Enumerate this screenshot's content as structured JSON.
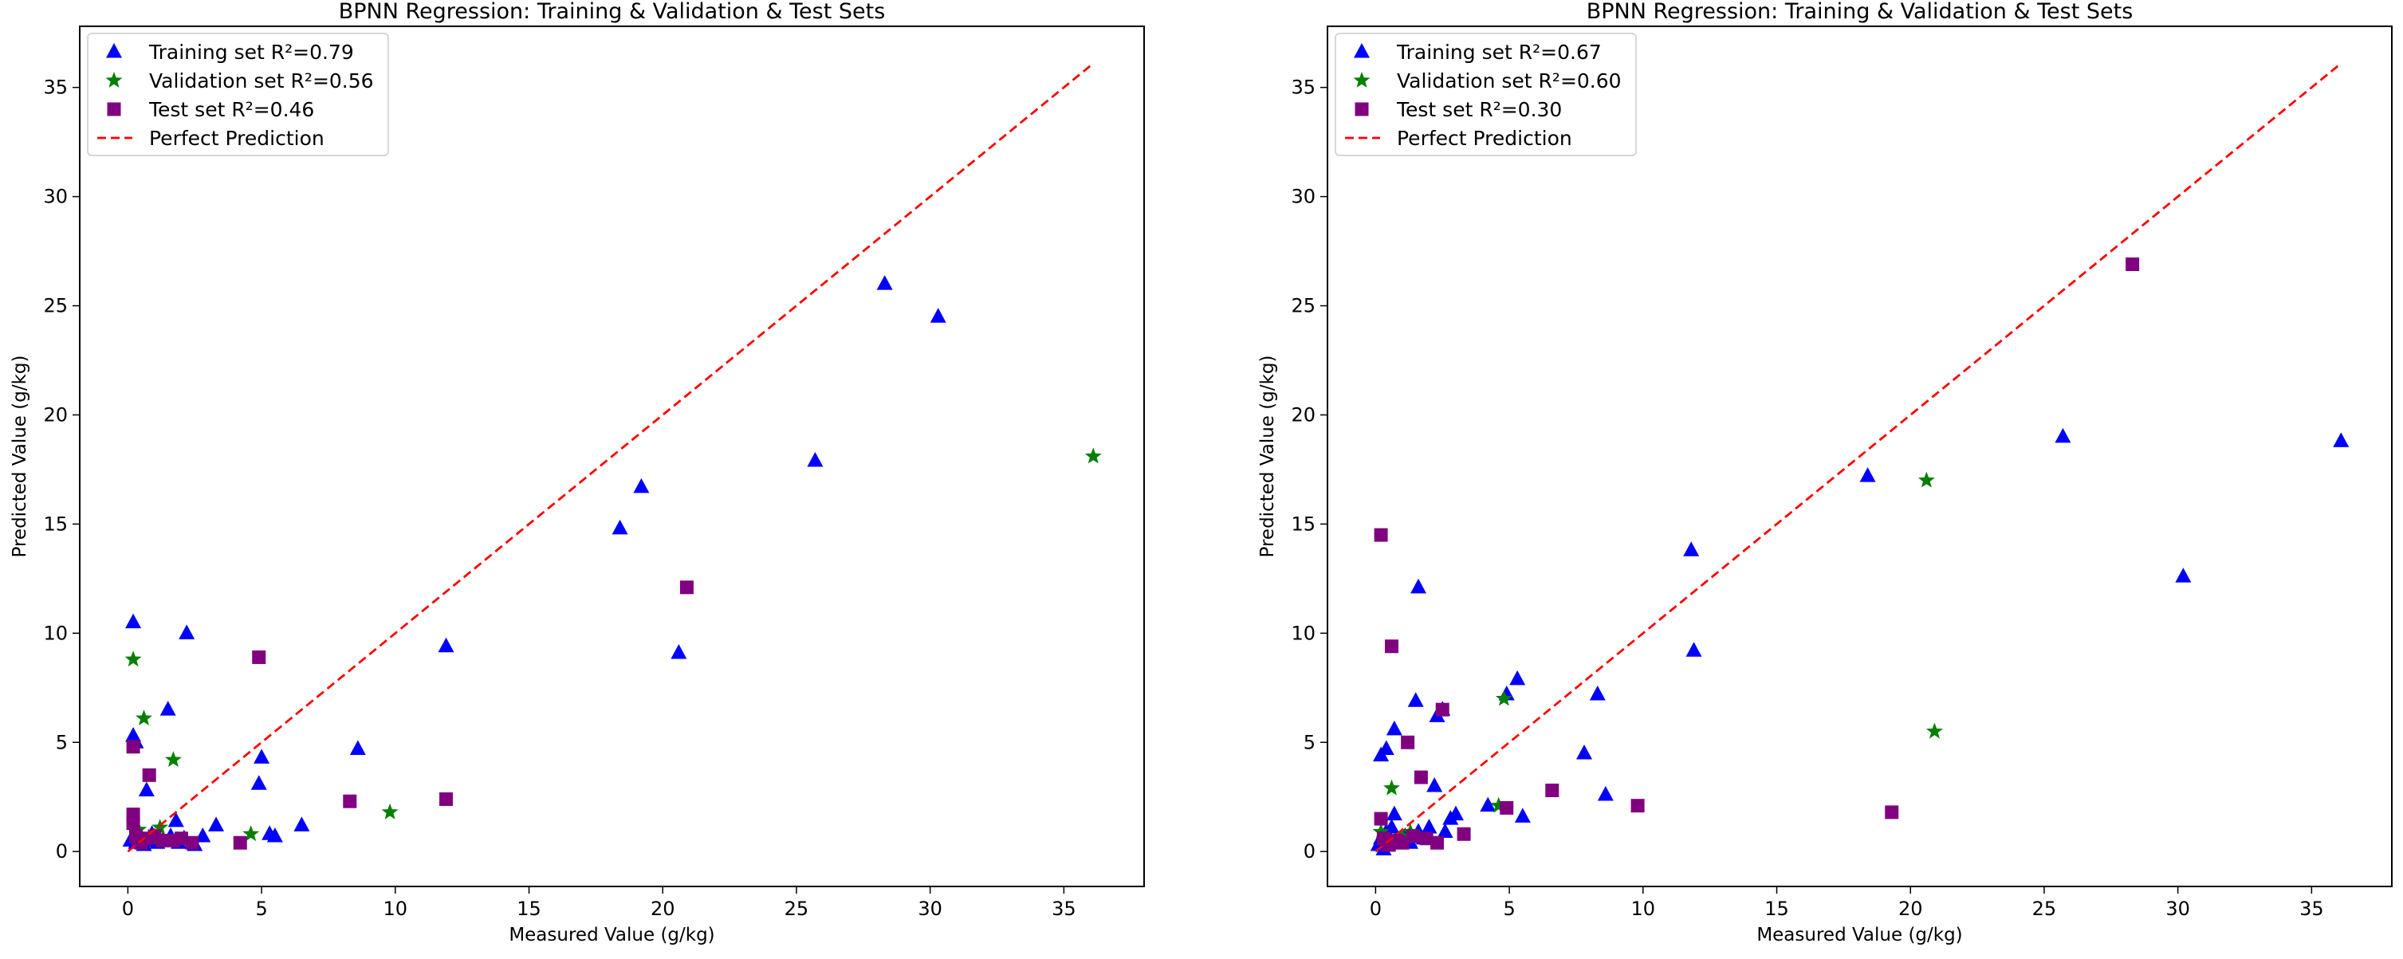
{
  "chart_data": [
    {
      "type": "scatter",
      "title": "BPNN Regression: Training & Validation & Test Sets",
      "xlabel": "Measured Value (g/kg)",
      "ylabel": "Predicted Value (g/kg)",
      "xlim": [
        -1.8,
        38.0
      ],
      "ylim": [
        -1.6,
        37.8
      ],
      "xticks": [
        0,
        5,
        10,
        15,
        20,
        25,
        30,
        35
      ],
      "yticks": [
        0,
        5,
        10,
        15,
        20,
        25,
        30,
        35
      ],
      "legend_position": "top-left",
      "perfect_prediction": {
        "label": "Perfect Prediction",
        "color": "#ff0000",
        "from": [
          0,
          0
        ],
        "to": [
          36.1,
          36.1
        ]
      },
      "series": [
        {
          "name": "Training set R²=0.79",
          "marker": "triangle",
          "color": "#0000ff",
          "points": [
            [
              0.2,
              10.5
            ],
            [
              0.2,
              5.3
            ],
            [
              0.3,
              5.0
            ],
            [
              2.2,
              10.0
            ],
            [
              1.5,
              6.5
            ],
            [
              0.7,
              2.8
            ],
            [
              1.8,
              1.4
            ],
            [
              0.1,
              0.5
            ],
            [
              0.2,
              0.7
            ],
            [
              0.3,
              0.4
            ],
            [
              0.4,
              0.9
            ],
            [
              0.5,
              0.6
            ],
            [
              0.6,
              0.3
            ],
            [
              0.8,
              0.5
            ],
            [
              0.9,
              0.8
            ],
            [
              1.0,
              0.6
            ],
            [
              1.1,
              0.4
            ],
            [
              1.3,
              0.5
            ],
            [
              1.6,
              0.7
            ],
            [
              1.9,
              0.4
            ],
            [
              2.1,
              0.6
            ],
            [
              2.5,
              0.3
            ],
            [
              2.8,
              0.7
            ],
            [
              3.3,
              1.2
            ],
            [
              5.0,
              4.3
            ],
            [
              4.9,
              3.1
            ],
            [
              5.3,
              0.8
            ],
            [
              5.5,
              0.7
            ],
            [
              6.5,
              1.2
            ],
            [
              8.6,
              4.7
            ],
            [
              11.9,
              9.4
            ],
            [
              18.4,
              14.8
            ],
            [
              19.2,
              16.7
            ],
            [
              20.6,
              9.1
            ],
            [
              25.7,
              17.9
            ],
            [
              28.3,
              26.0
            ],
            [
              30.3,
              24.5
            ]
          ]
        },
        {
          "name": "Validation set R²=0.56",
          "marker": "star",
          "color": "#008000",
          "points": [
            [
              0.2,
              8.8
            ],
            [
              0.6,
              6.1
            ],
            [
              1.7,
              4.2
            ],
            [
              0.4,
              1.0
            ],
            [
              0.9,
              0.6
            ],
            [
              1.2,
              1.1
            ],
            [
              4.6,
              0.8
            ],
            [
              9.8,
              1.8
            ],
            [
              36.1,
              18.1
            ]
          ]
        },
        {
          "name": "Test set R²=0.46",
          "marker": "square",
          "color": "#800080",
          "points": [
            [
              0.2,
              4.8
            ],
            [
              0.8,
              3.5
            ],
            [
              0.2,
              1.7
            ],
            [
              0.2,
              1.3
            ],
            [
              0.3,
              0.7
            ],
            [
              0.4,
              0.5
            ],
            [
              0.5,
              0.4
            ],
            [
              0.7,
              0.6
            ],
            [
              1.0,
              0.7
            ],
            [
              1.3,
              0.5
            ],
            [
              1.7,
              0.5
            ],
            [
              2.0,
              0.6
            ],
            [
              2.4,
              0.4
            ],
            [
              4.2,
              0.4
            ],
            [
              4.9,
              8.9
            ],
            [
              8.3,
              2.3
            ],
            [
              11.9,
              2.4
            ],
            [
              20.9,
              12.1
            ]
          ]
        }
      ]
    },
    {
      "type": "scatter",
      "title": "BPNN Regression: Training & Validation & Test Sets",
      "xlabel": "Measured Value (g/kg)",
      "ylabel": "Predicted Value (g/kg)",
      "xlim": [
        -1.8,
        38.0
      ],
      "ylim": [
        -1.6,
        37.8
      ],
      "xticks": [
        0,
        5,
        10,
        15,
        20,
        25,
        30,
        35
      ],
      "yticks": [
        0,
        5,
        10,
        15,
        20,
        25,
        30,
        35
      ],
      "legend_position": "top-left",
      "perfect_prediction": {
        "label": "Perfect Prediction",
        "color": "#ff0000",
        "from": [
          0,
          0
        ],
        "to": [
          36.1,
          36.1
        ]
      },
      "series": [
        {
          "name": "Training set R²=0.67",
          "marker": "triangle",
          "color": "#0000ff",
          "points": [
            [
              0.2,
              4.4
            ],
            [
              0.4,
              4.7
            ],
            [
              0.7,
              5.6
            ],
            [
              1.5,
              6.9
            ],
            [
              1.6,
              12.1
            ],
            [
              2.3,
              6.2
            ],
            [
              2.5,
              6.5
            ],
            [
              2.2,
              3.0
            ],
            [
              0.1,
              0.3
            ],
            [
              0.2,
              0.6
            ],
            [
              0.3,
              0.1
            ],
            [
              0.4,
              0.9
            ],
            [
              0.5,
              0.4
            ],
            [
              0.6,
              1.1
            ],
            [
              0.7,
              1.7
            ],
            [
              0.9,
              0.5
            ],
            [
              1.1,
              0.7
            ],
            [
              1.3,
              0.4
            ],
            [
              1.6,
              0.9
            ],
            [
              1.8,
              0.6
            ],
            [
              2.0,
              1.1
            ],
            [
              2.8,
              1.5
            ],
            [
              3.0,
              1.7
            ],
            [
              2.6,
              0.9
            ],
            [
              4.2,
              2.1
            ],
            [
              4.9,
              7.2
            ],
            [
              5.3,
              7.9
            ],
            [
              5.5,
              1.6
            ],
            [
              7.8,
              4.5
            ],
            [
              8.3,
              7.2
            ],
            [
              8.6,
              2.6
            ],
            [
              11.8,
              13.8
            ],
            [
              11.9,
              9.2
            ],
            [
              18.4,
              17.2
            ],
            [
              25.7,
              19.0
            ],
            [
              30.2,
              12.6
            ],
            [
              36.1,
              18.8
            ]
          ]
        },
        {
          "name": "Validation set R²=0.60",
          "marker": "star",
          "color": "#008000",
          "points": [
            [
              0.2,
              0.9
            ],
            [
              0.6,
              2.9
            ],
            [
              1.0,
              0.7
            ],
            [
              1.3,
              0.9
            ],
            [
              4.8,
              7.0
            ],
            [
              4.6,
              2.1
            ],
            [
              20.6,
              17.0
            ],
            [
              20.9,
              5.5
            ]
          ]
        },
        {
          "name": "Test set R²=0.30",
          "marker": "square",
          "color": "#800080",
          "points": [
            [
              0.2,
              14.5
            ],
            [
              0.6,
              9.4
            ],
            [
              1.2,
              5.0
            ],
            [
              1.7,
              3.4
            ],
            [
              2.5,
              6.5
            ],
            [
              0.2,
              1.5
            ],
            [
              0.3,
              0.6
            ],
            [
              0.5,
              0.3
            ],
            [
              0.8,
              0.5
            ],
            [
              1.0,
              0.4
            ],
            [
              1.4,
              0.7
            ],
            [
              1.9,
              0.6
            ],
            [
              2.3,
              0.4
            ],
            [
              3.3,
              0.8
            ],
            [
              4.9,
              2.0
            ],
            [
              6.6,
              2.8
            ],
            [
              9.8,
              2.1
            ],
            [
              19.3,
              1.8
            ],
            [
              28.3,
              26.9
            ]
          ]
        }
      ]
    }
  ]
}
